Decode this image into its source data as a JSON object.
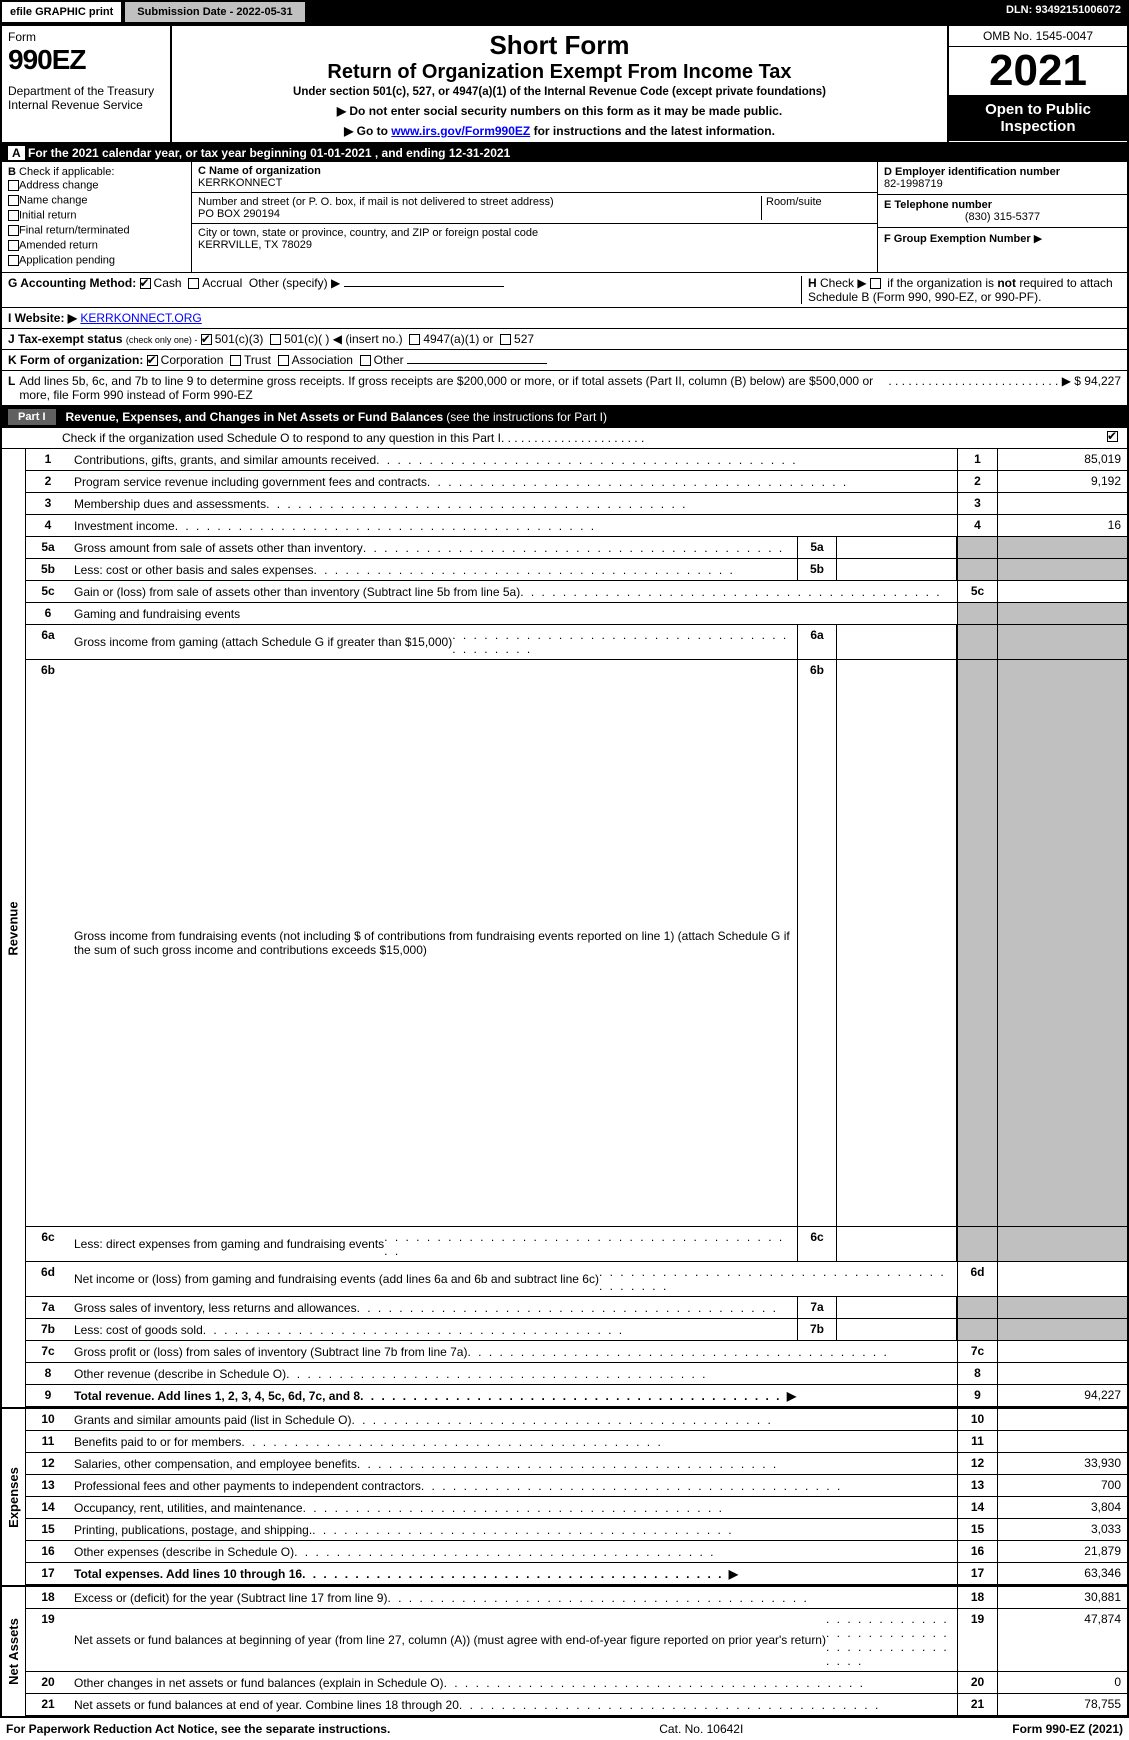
{
  "topbar": {
    "efile": "efile GRAPHIC print",
    "submission": "Submission Date - 2022-05-31",
    "dln": "DLN: 93492151006072"
  },
  "header": {
    "form_label": "Form",
    "form_no": "990EZ",
    "dept1": "Department of the Treasury",
    "dept2": "Internal Revenue Service",
    "title1": "Short Form",
    "title2": "Return of Organization Exempt From Income Tax",
    "subtitle": "Under section 501(c), 527, or 4947(a)(1) of the Internal Revenue Code (except private foundations)",
    "warn": "Do not enter social security numbers on this form as it may be made public.",
    "goto_pre": "Go to ",
    "goto_link": "www.irs.gov/Form990EZ",
    "goto_post": " for instructions and the latest information.",
    "omb": "OMB No. 1545-0047",
    "year": "2021",
    "inspection": "Open to Public Inspection"
  },
  "lineA": {
    "label": "A",
    "text_pre": " For the 2021 calendar year, or tax year beginning ",
    "begin": "01-01-2021",
    "mid": " , and ending ",
    "end": "12-31-2021"
  },
  "boxB": {
    "label": "B",
    "title": "Check if applicable:",
    "items": [
      "Address change",
      "Name change",
      "Initial return",
      "Final return/terminated",
      "Amended return",
      "Application pending"
    ]
  },
  "boxC": {
    "name_label": "C Name of organization",
    "name": "KERRKONNECT",
    "addr_label": "Number and street (or P. O. box, if mail is not delivered to street address)",
    "room_label": "Room/suite",
    "addr": "PO BOX 290194",
    "city_label": "City or town, state or province, country, and ZIP or foreign postal code",
    "city": "KERRVILLE, TX  78029"
  },
  "boxD": {
    "label": "D Employer identification number",
    "value": "82-1998719"
  },
  "boxE": {
    "label": "E Telephone number",
    "value": "(830) 315-5377"
  },
  "boxF": {
    "label": "F Group Exemption Number",
    "arrow": "▶"
  },
  "lineG": {
    "label": "G Accounting Method:",
    "cash": "Cash",
    "accrual": "Accrual",
    "other": "Other (specify) ▶"
  },
  "lineH": {
    "label": "H",
    "text": "Check ▶  if the organization is not required to attach Schedule B (Form 990, 990-EZ, or 990-PF)."
  },
  "lineI": {
    "label": "I Website: ▶",
    "value": "KERRKONNECT.ORG"
  },
  "lineJ": {
    "label": "J Tax-exempt status",
    "note": "(check only one) -",
    "o1": "501(c)(3)",
    "o2": "501(c)(  ) ◀ (insert no.)",
    "o3": "4947(a)(1) or",
    "o4": "527"
  },
  "lineK": {
    "label": "K Form of organization:",
    "o1": "Corporation",
    "o2": "Trust",
    "o3": "Association",
    "o4": "Other"
  },
  "lineL": {
    "label": "L",
    "text": "Add lines 5b, 6c, and 7b to line 9 to determine gross receipts. If gross receipts are $200,000 or more, or if total assets (Part II, column (B) below) are $500,000 or more, file Form 990 instead of Form 990-EZ",
    "amount": "$ 94,227"
  },
  "part1": {
    "name": "Part I",
    "title": "Revenue, Expenses, and Changes in Net Assets or Fund Balances",
    "note": "(see the instructions for Part I)",
    "check_note": "Check if the organization used Schedule O to respond to any question in this Part I"
  },
  "sections": {
    "revenue": "Revenue",
    "expenses": "Expenses",
    "netassets": "Net Assets"
  },
  "rows": {
    "1": {
      "d": "Contributions, gifts, grants, and similar amounts received",
      "nn": "1",
      "v": "85,019"
    },
    "2": {
      "d": "Program service revenue including government fees and contracts",
      "nn": "2",
      "v": "9,192"
    },
    "3": {
      "d": "Membership dues and assessments",
      "nn": "3",
      "v": ""
    },
    "4": {
      "d": "Investment income",
      "nn": "4",
      "v": "16"
    },
    "5a": {
      "d": "Gross amount from sale of assets other than inventory",
      "sb": "5a"
    },
    "5b": {
      "d": "Less: cost or other basis and sales expenses",
      "sb": "5b"
    },
    "5c": {
      "d": "Gain or (loss) from sale of assets other than inventory (Subtract line 5b from line 5a)",
      "nn": "5c",
      "v": ""
    },
    "6": {
      "d": "Gaming and fundraising events"
    },
    "6a": {
      "d": "Gross income from gaming (attach Schedule G if greater than $15,000)",
      "sb": "6a"
    },
    "6b": {
      "d": "Gross income from fundraising events (not including $                     of contributions from fundraising events reported on line 1) (attach Schedule G if the sum of such gross income and contributions exceeds $15,000)",
      "sb": "6b"
    },
    "6c": {
      "d": "Less: direct expenses from gaming and fundraising events",
      "sb": "6c"
    },
    "6d": {
      "d": "Net income or (loss) from gaming and fundraising events (add lines 6a and 6b and subtract line 6c)",
      "nn": "6d",
      "v": ""
    },
    "7a": {
      "d": "Gross sales of inventory, less returns and allowances",
      "sb": "7a"
    },
    "7b": {
      "d": "Less: cost of goods sold",
      "sb": "7b"
    },
    "7c": {
      "d": "Gross profit or (loss) from sales of inventory (Subtract line 7b from line 7a)",
      "nn": "7c",
      "v": ""
    },
    "8": {
      "d": "Other revenue (describe in Schedule O)",
      "nn": "8",
      "v": ""
    },
    "9": {
      "d": "Total revenue. Add lines 1, 2, 3, 4, 5c, 6d, 7c, and 8",
      "nn": "9",
      "v": "94,227",
      "arrow": true,
      "bold": true
    },
    "10": {
      "d": "Grants and similar amounts paid (list in Schedule O)",
      "nn": "10",
      "v": ""
    },
    "11": {
      "d": "Benefits paid to or for members",
      "nn": "11",
      "v": ""
    },
    "12": {
      "d": "Salaries, other compensation, and employee benefits",
      "nn": "12",
      "v": "33,930"
    },
    "13": {
      "d": "Professional fees and other payments to independent contractors",
      "nn": "13",
      "v": "700"
    },
    "14": {
      "d": "Occupancy, rent, utilities, and maintenance",
      "nn": "14",
      "v": "3,804"
    },
    "15": {
      "d": "Printing, publications, postage, and shipping.",
      "nn": "15",
      "v": "3,033"
    },
    "16": {
      "d": "Other expenses (describe in Schedule O)",
      "nn": "16",
      "v": "21,879"
    },
    "17": {
      "d": "Total expenses. Add lines 10 through 16",
      "nn": "17",
      "v": "63,346",
      "arrow": true,
      "bold": true
    },
    "18": {
      "d": "Excess or (deficit) for the year (Subtract line 17 from line 9)",
      "nn": "18",
      "v": "30,881"
    },
    "19": {
      "d": "Net assets or fund balances at beginning of year (from line 27, column (A)) (must agree with end-of-year figure reported on prior year's return)",
      "nn": "19",
      "v": "47,874"
    },
    "20": {
      "d": "Other changes in net assets or fund balances (explain in Schedule O)",
      "nn": "20",
      "v": "0"
    },
    "21": {
      "d": "Net assets or fund balances at end of year. Combine lines 18 through 20",
      "nn": "21",
      "v": "78,755"
    }
  },
  "footer": {
    "left": "For Paperwork Reduction Act Notice, see the separate instructions.",
    "center": "Cat. No. 10642I",
    "right_pre": "Form ",
    "right_form": "990-EZ",
    "right_post": " (2021)"
  },
  "colors": {
    "black": "#000000",
    "gray": "#c0c0c0",
    "darkgray": "#606060",
    "link": "#0000ff"
  }
}
